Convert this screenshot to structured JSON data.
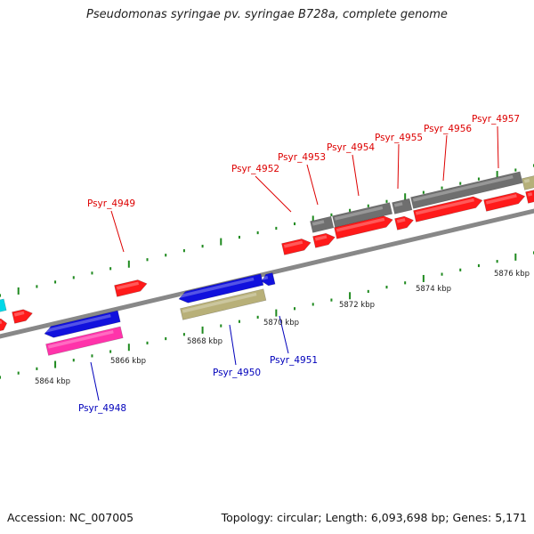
{
  "title": "Pseudomonas syringae pv. syringae B728a, complete genome",
  "footer": {
    "accession": "Accession: NC_007005",
    "summary": "Topology: circular; Length: 6,093,698 bp; Genes: 5,171"
  },
  "colors": {
    "backbone": "#8a8a8a",
    "tick": "#1f8a1f",
    "forward_label": "#dd0000",
    "reverse_label": "#0000bb"
  },
  "scale_labels": [
    "5864 kbp",
    "5866 kbp",
    "5868 kbp",
    "5870 kbp",
    "5872 kbp",
    "5874 kbp",
    "5876 kbp"
  ],
  "genes": [
    {
      "name": "Psyr_4948",
      "strand": "reverse"
    },
    {
      "name": "Psyr_4949",
      "strand": "forward"
    },
    {
      "name": "Psyr_4950",
      "strand": "reverse"
    },
    {
      "name": "Psyr_4951",
      "strand": "reverse"
    },
    {
      "name": "Psyr_4952",
      "strand": "forward"
    },
    {
      "name": "Psyr_4953",
      "strand": "forward"
    },
    {
      "name": "Psyr_4954",
      "strand": "forward"
    },
    {
      "name": "Psyr_4955",
      "strand": "forward"
    },
    {
      "name": "Psyr_4956",
      "strand": "forward"
    },
    {
      "name": "Psyr_4957",
      "strand": "forward"
    }
  ]
}
